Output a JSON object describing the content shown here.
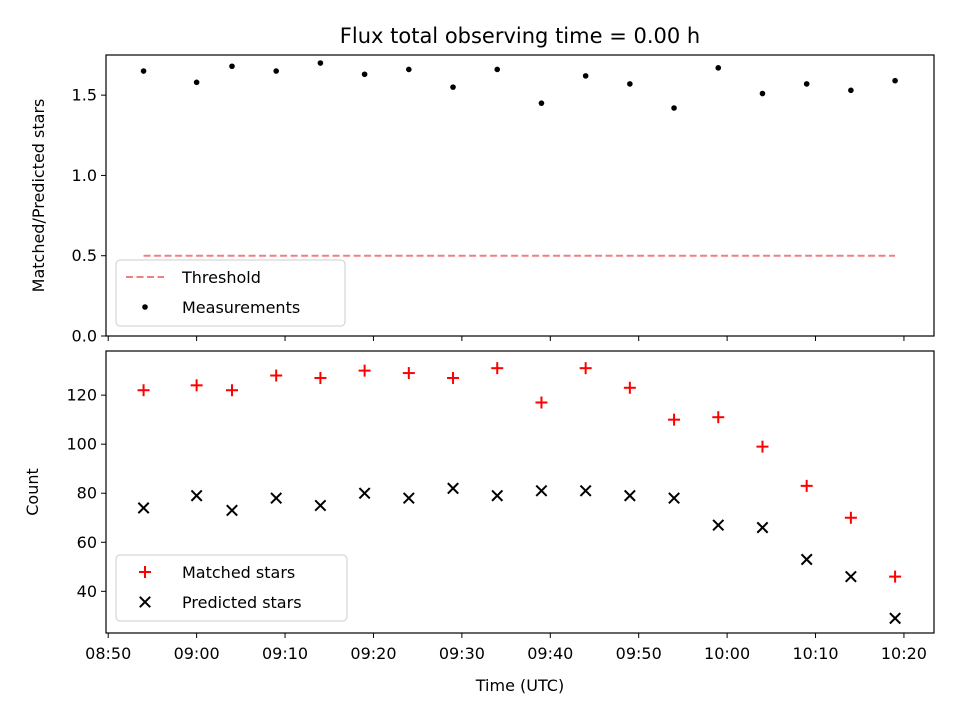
{
  "chart_data": [
    {
      "type": "scatter",
      "title": "Flux total observing time = 0.00 h",
      "xlabel": "",
      "ylabel": "Matched/Predicted stars",
      "ylim": [
        0,
        1.75
      ],
      "yticks": [
        "0.0",
        "0.5",
        "1.0",
        "1.5"
      ],
      "grid": false,
      "legend_position": "lower-left",
      "series": [
        {
          "name": "Threshold",
          "kind": "line",
          "style": "dashed",
          "color": "#f08080",
          "x": [
            "08:54",
            "10:19"
          ],
          "values": [
            0.5,
            0.5
          ]
        },
        {
          "name": "Measurements",
          "kind": "scatter",
          "marker": "dot",
          "color": "#000000",
          "x": [
            "08:54",
            "09:00",
            "09:04",
            "09:09",
            "09:14",
            "09:19",
            "09:24",
            "09:29",
            "09:34",
            "09:39",
            "09:44",
            "09:49",
            "09:54",
            "09:59",
            "10:04",
            "10:09",
            "10:14",
            "10:19"
          ],
          "values": [
            1.65,
            1.58,
            1.68,
            1.65,
            1.7,
            1.63,
            1.66,
            1.55,
            1.66,
            1.45,
            1.62,
            1.57,
            1.42,
            1.67,
            1.51,
            1.57,
            1.53,
            1.59
          ]
        }
      ]
    },
    {
      "type": "scatter",
      "title": "",
      "xlabel": "Time (UTC)",
      "ylabel": "Count",
      "ylim": [
        23,
        138
      ],
      "yticks": [
        "40",
        "60",
        "80",
        "100",
        "120"
      ],
      "xticks": [
        "08:50",
        "09:00",
        "09:10",
        "09:20",
        "09:30",
        "09:40",
        "09:50",
        "10:00",
        "10:10",
        "10:20"
      ],
      "grid": false,
      "legend_position": "lower-left",
      "series": [
        {
          "name": "Matched stars",
          "kind": "scatter",
          "marker": "plus",
          "color": "#ff0000",
          "x": [
            "08:54",
            "09:00",
            "09:04",
            "09:09",
            "09:14",
            "09:19",
            "09:24",
            "09:29",
            "09:34",
            "09:39",
            "09:44",
            "09:49",
            "09:54",
            "09:59",
            "10:04",
            "10:09",
            "10:14",
            "10:19"
          ],
          "values": [
            122,
            124,
            122,
            128,
            127,
            130,
            129,
            127,
            131,
            117,
            131,
            123,
            110,
            111,
            99,
            83,
            70,
            46
          ]
        },
        {
          "name": "Predicted stars",
          "kind": "scatter",
          "marker": "x",
          "color": "#000000",
          "x": [
            "08:54",
            "09:00",
            "09:04",
            "09:09",
            "09:14",
            "09:19",
            "09:24",
            "09:29",
            "09:34",
            "09:39",
            "09:44",
            "09:49",
            "09:54",
            "09:59",
            "10:04",
            "10:09",
            "10:14",
            "10:19"
          ],
          "values": [
            74,
            79,
            73,
            78,
            75,
            80,
            78,
            82,
            79,
            81,
            81,
            79,
            78,
            67,
            66,
            53,
            46,
            29
          ]
        }
      ]
    }
  ]
}
